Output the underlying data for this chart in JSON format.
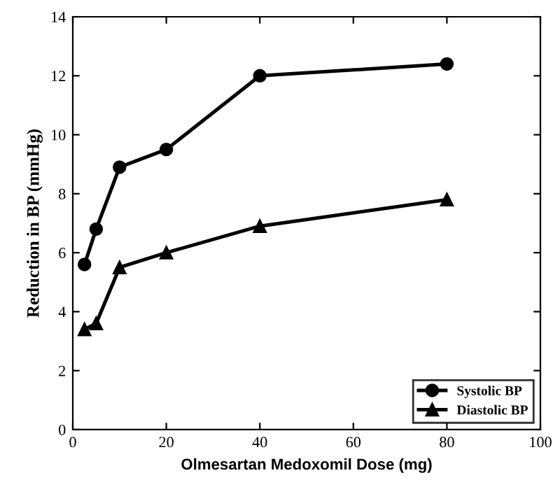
{
  "chart_data": {
    "type": "line",
    "xlabel": "Olmesartan Medoxomil Dose (mg)",
    "ylabel": "Reduction in BP (mmHg)",
    "x": [
      2.5,
      5,
      10,
      20,
      40,
      80
    ],
    "series": [
      {
        "name": "Systolic BP",
        "color": "#000000",
        "marker": "circle",
        "values": [
          5.6,
          6.8,
          8.9,
          9.5,
          12.0,
          12.4
        ]
      },
      {
        "name": "Diastolic BP",
        "color": "#000000",
        "marker": "triangle",
        "values": [
          3.4,
          3.6,
          5.5,
          6.0,
          6.9,
          7.8
        ]
      }
    ],
    "xlim": [
      0,
      100
    ],
    "xticks": [
      0,
      20,
      40,
      60,
      80,
      100
    ],
    "ylim": [
      0,
      14
    ],
    "yticks": [
      0,
      2,
      4,
      6,
      8,
      10,
      12,
      14
    ],
    "grid": false,
    "legend": "bottom right",
    "line_style": "solid"
  }
}
